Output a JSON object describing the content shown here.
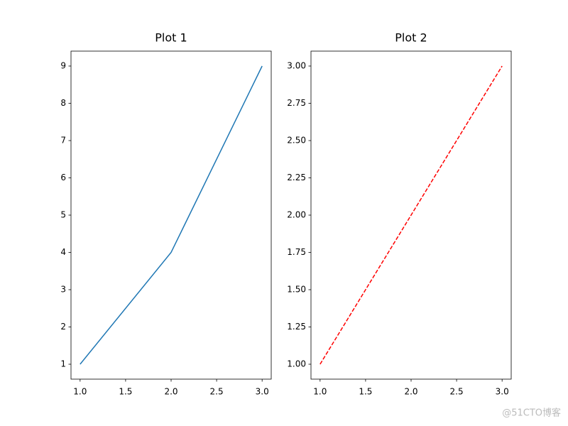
{
  "chart_data": [
    {
      "type": "line",
      "title": "Plot 1",
      "x": [
        1,
        2,
        3
      ],
      "series": [
        {
          "color": "#1f77b4",
          "linestyle": "solid",
          "values": [
            1,
            4,
            9
          ]
        }
      ],
      "xlim": [
        0.9,
        3.1
      ],
      "xticks": [
        {
          "value": 1,
          "label": "1.0"
        },
        {
          "value": 1.5,
          "label": "1.5"
        },
        {
          "value": 2,
          "label": "2.0"
        },
        {
          "value": 2.5,
          "label": "2.5"
        },
        {
          "value": 3,
          "label": "3.0"
        }
      ],
      "ylim": [
        0.6,
        9.4
      ],
      "yticks": [
        1,
        2,
        3,
        4,
        5,
        6,
        7,
        8,
        9
      ],
      "grid": false
    },
    {
      "type": "line",
      "title": "Plot 2",
      "x": [
        1,
        2,
        3
      ],
      "series": [
        {
          "color": "#ff0000",
          "linestyle": "dashed",
          "values": [
            1,
            2,
            3
          ]
        }
      ],
      "xlim": [
        0.9,
        3.1
      ],
      "xticks": [
        {
          "value": 1,
          "label": "1.0"
        },
        {
          "value": 1.5,
          "label": "1.5"
        },
        {
          "value": 2,
          "label": "2.0"
        },
        {
          "value": 2.5,
          "label": "2.5"
        },
        {
          "value": 3,
          "label": "3.0"
        }
      ],
      "ylim": [
        0.9,
        3.1
      ],
      "yticks": [
        {
          "value": 1,
          "label": "1.00"
        },
        {
          "value": 1.25,
          "label": "1.25"
        },
        {
          "value": 1.5,
          "label": "1.50"
        },
        {
          "value": 1.75,
          "label": "1.75"
        },
        {
          "value": 2,
          "label": "2.00"
        },
        {
          "value": 2.25,
          "label": "2.25"
        },
        {
          "value": 2.5,
          "label": "2.50"
        },
        {
          "value": 2.75,
          "label": "2.75"
        },
        {
          "value": 3,
          "label": "3.00"
        }
      ],
      "grid": false
    }
  ],
  "watermark": "@51CTO博客"
}
